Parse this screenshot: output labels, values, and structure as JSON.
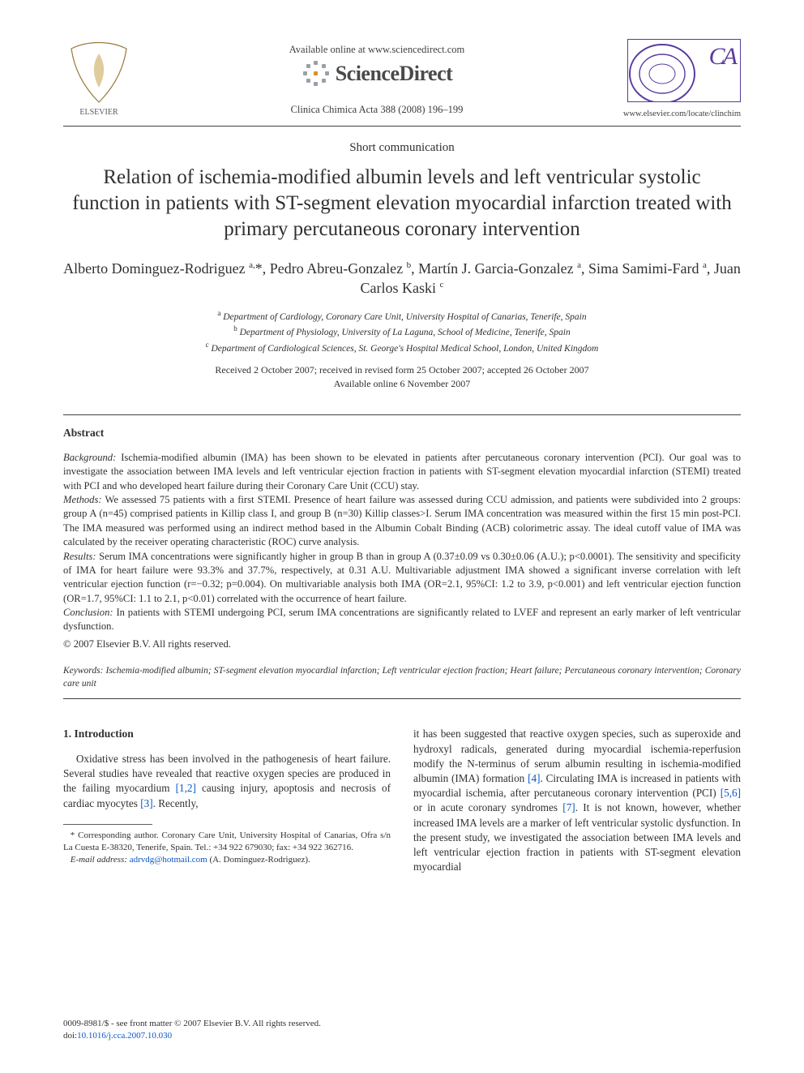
{
  "header": {
    "available_online": "Available online at www.sciencedirect.com",
    "sciencedirect_label": "ScienceDirect",
    "journal_reference": "Clinica Chimica Acta 388 (2008) 196–199",
    "locate_url": "www.elsevier.com/locate/clinchim"
  },
  "article": {
    "type": "Short communication",
    "title": "Relation of ischemia-modified albumin levels and left ventricular systolic function in patients with ST-segment elevation myocardial infarction treated with primary percutaneous coronary intervention",
    "authors_html": "Alberto Dominguez-Rodriguez <sup>a,</sup>*, Pedro Abreu-Gonzalez <sup>b</sup>, Martín J. Garcia-Gonzalez <sup>a</sup>, Sima Samimi-Fard <sup>a</sup>, Juan Carlos Kaski <sup>c</sup>",
    "affiliations": {
      "a": "Department of Cardiology, Coronary Care Unit, University Hospital of Canarias, Tenerife, Spain",
      "b": "Department of Physiology, University of La Laguna, School of Medicine, Tenerife, Spain",
      "c": "Department of Cardiological Sciences, St. George's Hospital Medical School, London, United Kingdom"
    },
    "dates": {
      "received": "Received 2 October 2007; received in revised form 25 October 2007; accepted 26 October 2007",
      "available_online": "Available online 6 November 2007"
    }
  },
  "abstract": {
    "heading": "Abstract",
    "background_label": "Background:",
    "background": "Ischemia-modified albumin (IMA) has been shown to be elevated in patients after percutaneous coronary intervention (PCI). Our goal was to investigate the association between IMA levels and left ventricular ejection fraction in patients with ST-segment elevation myocardial infarction (STEMI) treated with PCI and who developed heart failure during their Coronary Care Unit (CCU) stay.",
    "methods_label": "Methods:",
    "methods": "We assessed 75 patients with a first STEMI. Presence of heart failure was assessed during CCU admission, and patients were subdivided into 2 groups: group A (n=45) comprised patients in Killip class I, and group B (n=30) Killip classes>I. Serum IMA concentration was measured within the first 15 min post-PCI. The IMA measured was performed using an indirect method based in the Albumin Cobalt Binding (ACB) colorimetric assay. The ideal cutoff value of IMA was calculated by the receiver operating characteristic (ROC) curve analysis.",
    "results_label": "Results:",
    "results": "Serum IMA concentrations were significantly higher in group B than in group A (0.37±0.09 vs 0.30±0.06 (A.U.); p<0.0001). The sensitivity and specificity of IMA for heart failure were 93.3% and 37.7%, respectively, at 0.31 A.U. Multivariable adjustment IMA showed a significant inverse correlation with left ventricular ejection function (r=−0.32; p=0.004). On multivariable analysis both IMA (OR=2.1, 95%CI: 1.2 to 3.9, p<0.001) and left ventricular ejection function (OR=1.7, 95%CI: 1.1 to 2.1, p<0.01) correlated with the occurrence of heart failure.",
    "conclusion_label": "Conclusion:",
    "conclusion": "In patients with STEMI undergoing PCI, serum IMA concentrations are significantly related to LVEF and represent an early marker of left ventricular dysfunction.",
    "copyright": "© 2007 Elsevier B.V. All rights reserved."
  },
  "keywords": {
    "label": "Keywords:",
    "text": "Ischemia-modified albumin; ST-segment elevation myocardial infarction; Left ventricular ejection fraction; Heart failure; Percutaneous coronary intervention; Coronary care unit"
  },
  "body": {
    "intro_heading": "1. Introduction",
    "col1_p1_a": "Oxidative stress has been involved in the pathogenesis of heart failure. Several studies have revealed that reactive oxygen species are produced in the failing myocardium ",
    "col1_p1_cite1": "[1,2]",
    "col1_p1_b": " causing injury, apoptosis and necrosis of cardiac myocytes ",
    "col1_p1_cite2": "[3]",
    "col1_p1_c": ". Recently,",
    "col2_p1_a": "it has been suggested that reactive oxygen species, such as superoxide and hydroxyl radicals, generated during myocardial ischemia-reperfusion modify the N-terminus of serum albumin resulting in ischemia-modified albumin (IMA) formation ",
    "col2_p1_cite1": "[4]",
    "col2_p1_b": ". Circulating IMA is increased in patients with myocardial ischemia, after percutaneous coronary intervention (PCI) ",
    "col2_p1_cite2": "[5,6]",
    "col2_p1_c": " or in acute coronary syndromes ",
    "col2_p1_cite3": "[7]",
    "col2_p1_d": ". It is not known, however, whether increased IMA levels are a marker of left ventricular systolic dysfunction. In the present study, we investigated the association between IMA levels and left ventricular ejection fraction in patients with ST-segment elevation myocardial"
  },
  "footnote": {
    "corr": "* Corresponding author. Coronary Care Unit, University Hospital of Canarias, Ofra s/n La Cuesta E-38320, Tenerife, Spain. Tel.: +34 922 679030; fax: +34 922 362716.",
    "email_label": "E-mail address:",
    "email": "adrvdg@hotmail.com",
    "email_attr": " (A. Dominguez-Rodriguez)."
  },
  "footer": {
    "line1": "0009-8981/$ - see front matter © 2007 Elsevier B.V. All rights reserved.",
    "doi_label": "doi:",
    "doi": "10.1016/j.cca.2007.10.030"
  },
  "colors": {
    "text": "#303030",
    "link": "#0a56c4",
    "logo_purple": "#5a3aa0",
    "burst_gray": "#9aa0a6"
  }
}
